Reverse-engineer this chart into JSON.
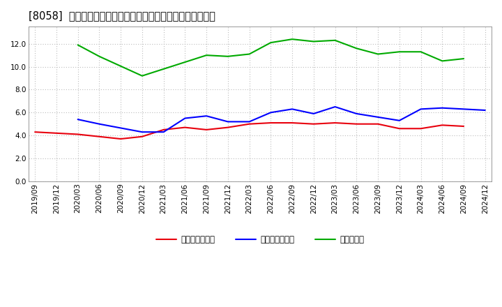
{
  "title": "[8058]  売上債権回転率、買入債務回転率、在庫回転率の推移",
  "xlabels": [
    "2019/09",
    "2019/12",
    "2020/03",
    "2020/06",
    "2020/09",
    "2020/12",
    "2021/03",
    "2021/06",
    "2021/09",
    "2021/12",
    "2022/03",
    "2022/06",
    "2022/09",
    "2022/12",
    "2023/03",
    "2023/06",
    "2023/09",
    "2023/12",
    "2024/03",
    "2024/06",
    "2024/09",
    "2024/12"
  ],
  "receivables": [
    4.3,
    null,
    4.1,
    null,
    3.7,
    3.9,
    4.5,
    4.7,
    4.5,
    4.7,
    5.0,
    5.1,
    5.1,
    5.0,
    5.1,
    5.0,
    5.0,
    4.6,
    4.6,
    4.9,
    4.8,
    null
  ],
  "payables": [
    null,
    null,
    5.4,
    5.0,
    null,
    4.3,
    4.3,
    5.5,
    5.7,
    5.2,
    5.2,
    6.0,
    6.3,
    5.9,
    6.5,
    5.9,
    null,
    5.3,
    6.3,
    6.4,
    6.3,
    6.2
  ],
  "inventory": [
    null,
    null,
    11.9,
    10.9,
    null,
    9.2,
    9.8,
    null,
    11.0,
    10.9,
    11.1,
    12.1,
    12.4,
    12.2,
    12.3,
    11.6,
    11.1,
    11.3,
    11.3,
    10.5,
    10.7,
    null
  ],
  "receivables_color": "#e8000d",
  "payables_color": "#0000ff",
  "inventory_color": "#00aa00",
  "ylim": [
    0.0,
    13.5
  ],
  "yticks": [
    0.0,
    2.0,
    4.0,
    6.0,
    8.0,
    10.0,
    12.0
  ],
  "legend_labels": [
    "売上債権回転率",
    "買入債務回転率",
    "在庫回転率"
  ],
  "bg_color": "#ffffff",
  "grid_color": "#bbbbbb",
  "title_fontsize": 10.5,
  "axis_fontsize": 7.5,
  "legend_fontsize": 8.5
}
